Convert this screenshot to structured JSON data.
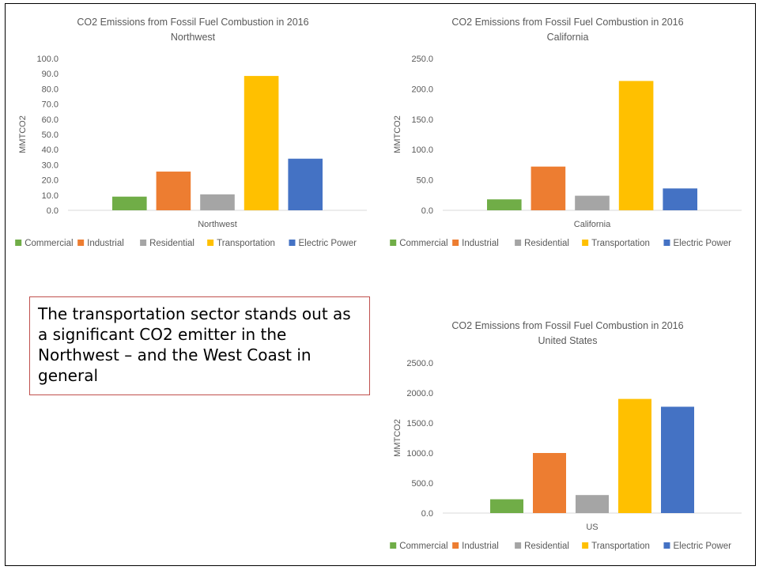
{
  "callout": {
    "text": "The transportation sector stands out as a significant CO2 emitter in the Northwest – and the West Coast in general"
  },
  "colors": {
    "Commercial": "#70ad47",
    "Industrial": "#ed7d31",
    "Residential": "#a5a5a5",
    "Transportation": "#ffc000",
    "Electric Power": "#4472c4"
  },
  "chart_data": [
    {
      "id": "northwest",
      "type": "bar",
      "title": "CO2 Emissions from Fossil Fuel Combustion in 2016",
      "subtitle": "Northwest",
      "ylabel": "MMTCO2",
      "xlabel": "Northwest",
      "ylim": [
        0,
        100
      ],
      "yticks": [
        "0.0",
        "10.0",
        "20.0",
        "30.0",
        "40.0",
        "50.0",
        "60.0",
        "70.0",
        "80.0",
        "90.0",
        "100.0"
      ],
      "ytick_values": [
        0,
        10,
        20,
        30,
        40,
        50,
        60,
        70,
        80,
        90,
        100
      ],
      "categories": [
        "Northwest"
      ],
      "series": [
        {
          "name": "Commercial",
          "values": [
            9.0
          ]
        },
        {
          "name": "Industrial",
          "values": [
            25.5
          ]
        },
        {
          "name": "Residential",
          "values": [
            10.5
          ]
        },
        {
          "name": "Transportation",
          "values": [
            88.5
          ]
        },
        {
          "name": "Electric Power",
          "values": [
            34.0
          ]
        }
      ],
      "legend": "bottom",
      "grid": false
    },
    {
      "id": "california",
      "type": "bar",
      "title": "CO2 Emissions from Fossil Fuel Combustion in 2016",
      "subtitle": "California",
      "ylabel": "MMTCO2",
      "xlabel": "California",
      "ylim": [
        0,
        250
      ],
      "yticks": [
        "0.0",
        "50.0",
        "100.0",
        "150.0",
        "200.0",
        "250.0"
      ],
      "ytick_values": [
        0,
        50,
        100,
        150,
        200,
        250
      ],
      "categories": [
        "California"
      ],
      "series": [
        {
          "name": "Commercial",
          "values": [
            18
          ]
        },
        {
          "name": "Industrial",
          "values": [
            72
          ]
        },
        {
          "name": "Residential",
          "values": [
            24
          ]
        },
        {
          "name": "Transportation",
          "values": [
            213
          ]
        },
        {
          "name": "Electric Power",
          "values": [
            36
          ]
        }
      ],
      "legend": "bottom",
      "grid": false
    },
    {
      "id": "us",
      "type": "bar",
      "title": "CO2 Emissions from Fossil Fuel Combustion in 2016",
      "subtitle": "United States",
      "ylabel": "MMTCO2",
      "xlabel": "US",
      "ylim": [
        0,
        2500
      ],
      "yticks": [
        "0.0",
        "500.0",
        "1000.0",
        "1500.0",
        "2000.0",
        "2500.0"
      ],
      "ytick_values": [
        0,
        500,
        1000,
        1500,
        2000,
        2500
      ],
      "categories": [
        "US"
      ],
      "series": [
        {
          "name": "Commercial",
          "values": [
            230
          ]
        },
        {
          "name": "Industrial",
          "values": [
            1000
          ]
        },
        {
          "name": "Residential",
          "values": [
            300
          ]
        },
        {
          "name": "Transportation",
          "values": [
            1900
          ]
        },
        {
          "name": "Electric Power",
          "values": [
            1770
          ]
        }
      ],
      "legend": "bottom",
      "grid": false
    }
  ]
}
